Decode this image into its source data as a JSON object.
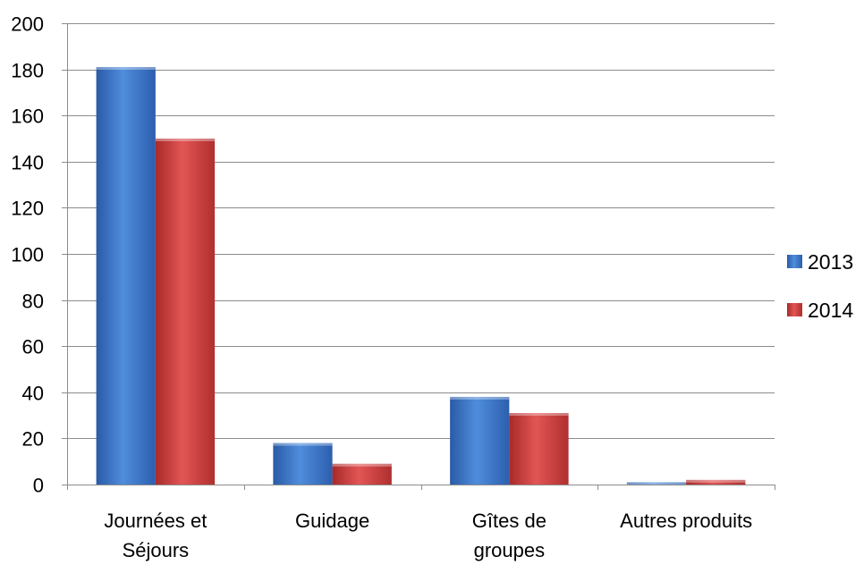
{
  "chart_data": {
    "type": "bar",
    "title": "",
    "xlabel": "",
    "ylabel": "",
    "categories": [
      [
        "Journées et",
        "Séjours"
      ],
      [
        "Guidage"
      ],
      [
        "Gîtes de",
        "groupes"
      ],
      [
        "Autres produits"
      ]
    ],
    "series": [
      {
        "name": "2013",
        "color": "#3b74c9",
        "values": [
          181,
          18,
          38,
          1
        ]
      },
      {
        "name": "2014",
        "color": "#d63c3c",
        "values": [
          150,
          9,
          31,
          2
        ]
      }
    ],
    "ylim": [
      0,
      200
    ],
    "yticks": [
      "0",
      "20",
      "40",
      "60",
      "80",
      "100",
      "120",
      "140",
      "160",
      "180",
      "200"
    ],
    "grid": true,
    "legend_position": "right"
  }
}
